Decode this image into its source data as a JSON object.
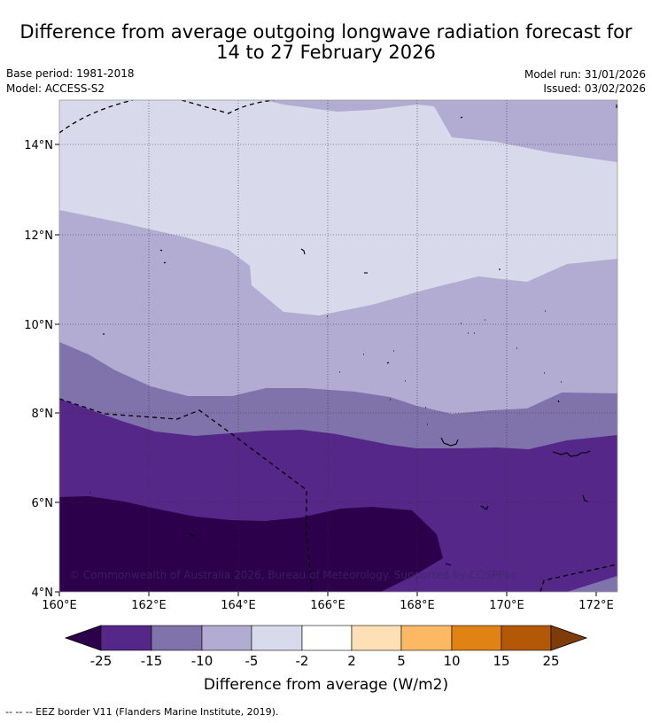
{
  "title": {
    "line1": "Difference from average outgoing longwave radiation forecast for",
    "line2": "14 to 27 February 2026"
  },
  "meta": {
    "base_period": "Base period: 1981-2018",
    "model": "Model: ACCESS-S2",
    "model_run": "Model run: 31/01/2026",
    "issued": "Issued: 03/02/2026"
  },
  "map": {
    "lon_labels": [
      "160°E",
      "162°E",
      "164°E",
      "166°E",
      "168°E",
      "170°E",
      "172°E"
    ],
    "lat_labels": [
      "14°N",
      "12°N",
      "10°N",
      "8°N",
      "6°N",
      "4°N"
    ],
    "copyright": "© Commonwealth of Australia 2026, Bureau of Meteorology. Supported by COSPPac"
  },
  "legend": {
    "ticks": [
      "-25",
      "-15",
      "-10",
      "-5",
      "-2",
      "2",
      "5",
      "10",
      "15",
      "25"
    ],
    "colors": [
      "#2d004b",
      "#542788",
      "#8073ac",
      "#b2abd2",
      "#d8daeb",
      "#ffffff",
      "#fee0b6",
      "#fdb863",
      "#e08214",
      "#b35806",
      "#7f3b08"
    ],
    "label": "Difference from average (W/m2)"
  },
  "footnote": "--  --  -- EEZ border V11 (Flanders Marine Institute, 2019)."
}
